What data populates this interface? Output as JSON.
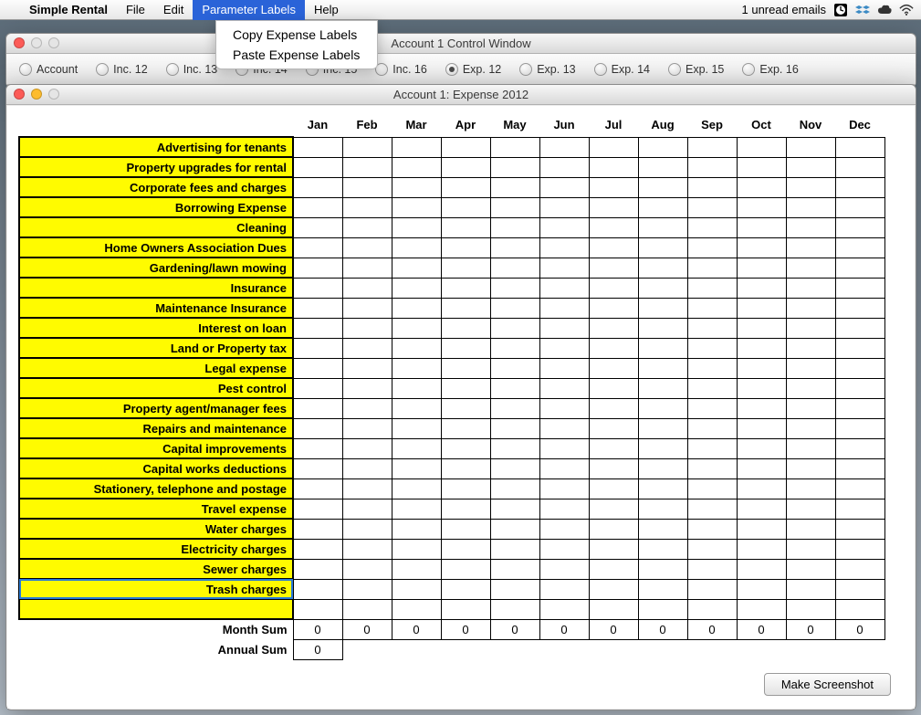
{
  "menubar": {
    "app": "Simple Rental",
    "items": [
      "File",
      "Edit",
      "Parameter Labels",
      "Help"
    ],
    "active_index": 2,
    "right_text": "1 unread emails",
    "tray_icons": [
      "clock-icon",
      "dropbox-icon",
      "cloud-icon",
      "wifi-icon"
    ]
  },
  "dropdown": {
    "items": [
      "Copy Expense Labels",
      "Paste Expense Labels"
    ]
  },
  "control_window": {
    "title": "Account 1 Control Window",
    "radios": [
      "Account",
      "Inc. 12",
      "Inc. 13",
      "Inc. 14",
      "Inc. 15",
      "Inc. 16",
      "Exp. 12",
      "Exp. 13",
      "Exp. 14",
      "Exp. 15",
      "Exp. 16"
    ],
    "selected_index": 6
  },
  "expense_window": {
    "title": "Account 1: Expense 2012",
    "months": [
      "Jan",
      "Feb",
      "Mar",
      "Apr",
      "May",
      "Jun",
      "Jul",
      "Aug",
      "Sep",
      "Oct",
      "Nov",
      "Dec"
    ],
    "rows": [
      "Advertising for tenants",
      "Property upgrades for rental",
      "Corporate fees and charges",
      "Borrowing Expense",
      "Cleaning",
      "Home Owners Association Dues",
      "Gardening/lawn mowing",
      "Insurance",
      "Maintenance Insurance",
      "Interest on loan",
      "Land or Property tax",
      "Legal expense",
      "Pest control",
      "Property agent/manager fees",
      "Repairs and maintenance",
      "Capital improvements",
      "Capital works deductions",
      "Stationery, telephone and postage",
      "Travel expense",
      "Water charges",
      "Electricity charges",
      "Sewer charges",
      "Trash charges"
    ],
    "selected_row_index": 22,
    "month_sum_label": "Month Sum",
    "month_sums": [
      "0",
      "0",
      "0",
      "0",
      "0",
      "0",
      "0",
      "0",
      "0",
      "0",
      "0",
      "0"
    ],
    "annual_sum_label": "Annual Sum",
    "annual_sum": "0",
    "button": "Make Screenshot",
    "colors": {
      "row_label_bg": "#fffb00",
      "grid_border": "#000000",
      "selection_outline": "#2a7bd8"
    }
  }
}
